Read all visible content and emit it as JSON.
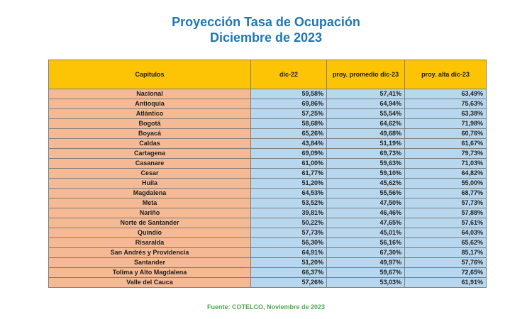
{
  "title": {
    "line1": "Proyección Tasa de Ocupación",
    "line2": "Diciembre de 2023"
  },
  "table": {
    "headers": [
      "Capitulos",
      "dic-22",
      "proy. promedio dic-23",
      "proy. alta dic-23"
    ],
    "rows": [
      [
        "Nacional",
        "59,58%",
        "57,41%",
        "63,49%"
      ],
      [
        "Antioquia",
        "69,86%",
        "64,94%",
        "75,63%"
      ],
      [
        "Atlántico",
        "57,25%",
        "55,54%",
        "63,38%"
      ],
      [
        "Bogotá",
        "58,68%",
        "64,62%",
        "71,98%"
      ],
      [
        "Boyacá",
        "65,26%",
        "49,68%",
        "60,76%"
      ],
      [
        "Caldas",
        "43,84%",
        "51,19%",
        "61,67%"
      ],
      [
        "Cartagena",
        "69,09%",
        "69,73%",
        "79,73%"
      ],
      [
        "Casanare",
        "61,00%",
        "59,63%",
        "71,03%"
      ],
      [
        "Cesar",
        "61,77%",
        "59,10%",
        "64,82%"
      ],
      [
        "Huila",
        "51,20%",
        "45,62%",
        "55,00%"
      ],
      [
        "Magdalena",
        "64,53%",
        "55,56%",
        "68,77%"
      ],
      [
        "Meta",
        "53,52%",
        "47,50%",
        "57,73%"
      ],
      [
        "Nariño",
        "39,81%",
        "46,46%",
        "57,88%"
      ],
      [
        "Norte de Santander",
        "50,22%",
        "47,65%",
        "57,61%"
      ],
      [
        "Quindío",
        "57,73%",
        "45,01%",
        "64,03%"
      ],
      [
        "Risaralda",
        "56,30%",
        "56,16%",
        "65,62%"
      ],
      [
        "San Andrés y Providencia",
        "64,91%",
        "67,30%",
        "85,17%"
      ],
      [
        "Santander",
        "51,20%",
        "49,97%",
        "57,76%"
      ],
      [
        "Tolima y Alto Magdalena",
        "66,37%",
        "59,67%",
        "72,65%"
      ],
      [
        "Valle del Cauca",
        "57,26%",
        "53,03%",
        "61,91%"
      ]
    ]
  },
  "source": "Fuente: COTELCO, Noviembre de 2023",
  "colors": {
    "title": "#1f77b4",
    "header_bg": "#fdc305",
    "label_bg": "#f5b994",
    "value_bg": "#b7d7ee",
    "source": "#4fa84b"
  }
}
